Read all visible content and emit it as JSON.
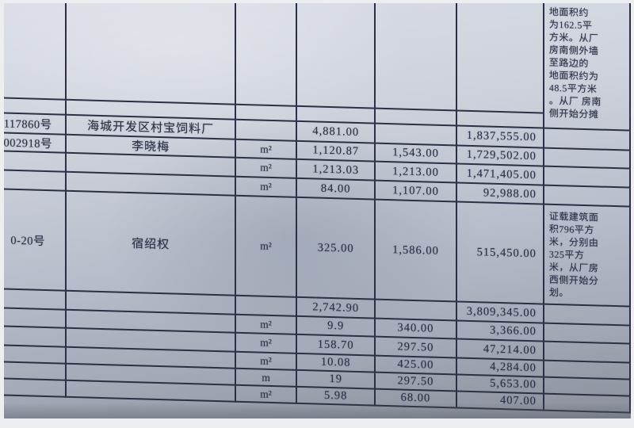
{
  "document": {
    "kind": "photographed paper table",
    "language": "zh-CN"
  },
  "colors": {
    "paper_top": "#dadde6",
    "paper_bottom": "#8e939f",
    "grid_line": "#2b3044",
    "ink": "#2e3246",
    "background": "#edeeef"
  },
  "table": {
    "column_names": [
      "certificate-no",
      "owner-name",
      "unit",
      "area",
      "unit-price",
      "amount",
      "notes"
    ],
    "rows": [
      {
        "cells": [
          "",
          "",
          "",
          "",
          "",
          ""
        ],
        "note": {
          "span": 2,
          "lines": [
            "地面积约",
            "为162.5平",
            "方米。从厂",
            "房南侧外墙",
            "至路边的",
            "地面积约为",
            "48.5平方米",
            "。从厂 房南",
            "侧开始分摊"
          ]
        }
      },
      {
        "cells": [
          "",
          "",
          "",
          "",
          "",
          ""
        ]
      },
      {
        "cells": [
          "117860号",
          "海城开发区村宝饲料厂",
          "",
          "4,881.00",
          "",
          "1,837,555.00"
        ],
        "note": {
          "span": 1,
          "lines": []
        }
      },
      {
        "cells": [
          "002918号",
          "李晓梅",
          "m²",
          "1,120.87",
          "1,543.00",
          "1,729,502.00"
        ],
        "note": {
          "span": 1,
          "lines": []
        }
      },
      {
        "cells": [
          "",
          "",
          "m²",
          "1,213.03",
          "1,213.00",
          "1,471,405.00"
        ],
        "note": {
          "span": 1,
          "lines": []
        }
      },
      {
        "cells": [
          "",
          "",
          "m²",
          "84.00",
          "1,107.00",
          "92,988.00"
        ],
        "note": {
          "span": 1,
          "lines": []
        }
      },
      {
        "cells": [
          "0-20号",
          "宿绍权",
          "m²",
          "325.00",
          "1,586.00",
          "515,450.00"
        ],
        "note": {
          "span": 1,
          "lines": [
            "证载建筑面",
            "积796平方",
            "米，分别由",
            "325平方",
            "米，从厂房",
            "西侧开始分",
            "划。"
          ]
        }
      },
      {
        "cells": [
          "",
          "",
          "",
          "2,742.90",
          "",
          "3,809,345.00"
        ],
        "note": {
          "span": 1,
          "lines": []
        }
      },
      {
        "cells": [
          "",
          "",
          "m²",
          "9.9",
          "340.00",
          "3,366.00"
        ],
        "note": {
          "span": 1,
          "lines": []
        }
      },
      {
        "cells": [
          "",
          "",
          "m²",
          "158.70",
          "297.50",
          "47,214.00"
        ],
        "note": {
          "span": 1,
          "lines": []
        }
      },
      {
        "cells": [
          "",
          "",
          "m²",
          "10.08",
          "425.00",
          "4,284.00"
        ],
        "note": {
          "span": 1,
          "lines": []
        }
      },
      {
        "cells": [
          "",
          "",
          "m",
          "19",
          "297.50",
          "5,653.00"
        ],
        "note": {
          "span": 1,
          "lines": []
        }
      },
      {
        "cells": [
          "",
          "",
          "m²",
          "5.98",
          "68.00",
          "407.00"
        ],
        "note": {
          "span": 1,
          "lines": []
        }
      }
    ]
  }
}
